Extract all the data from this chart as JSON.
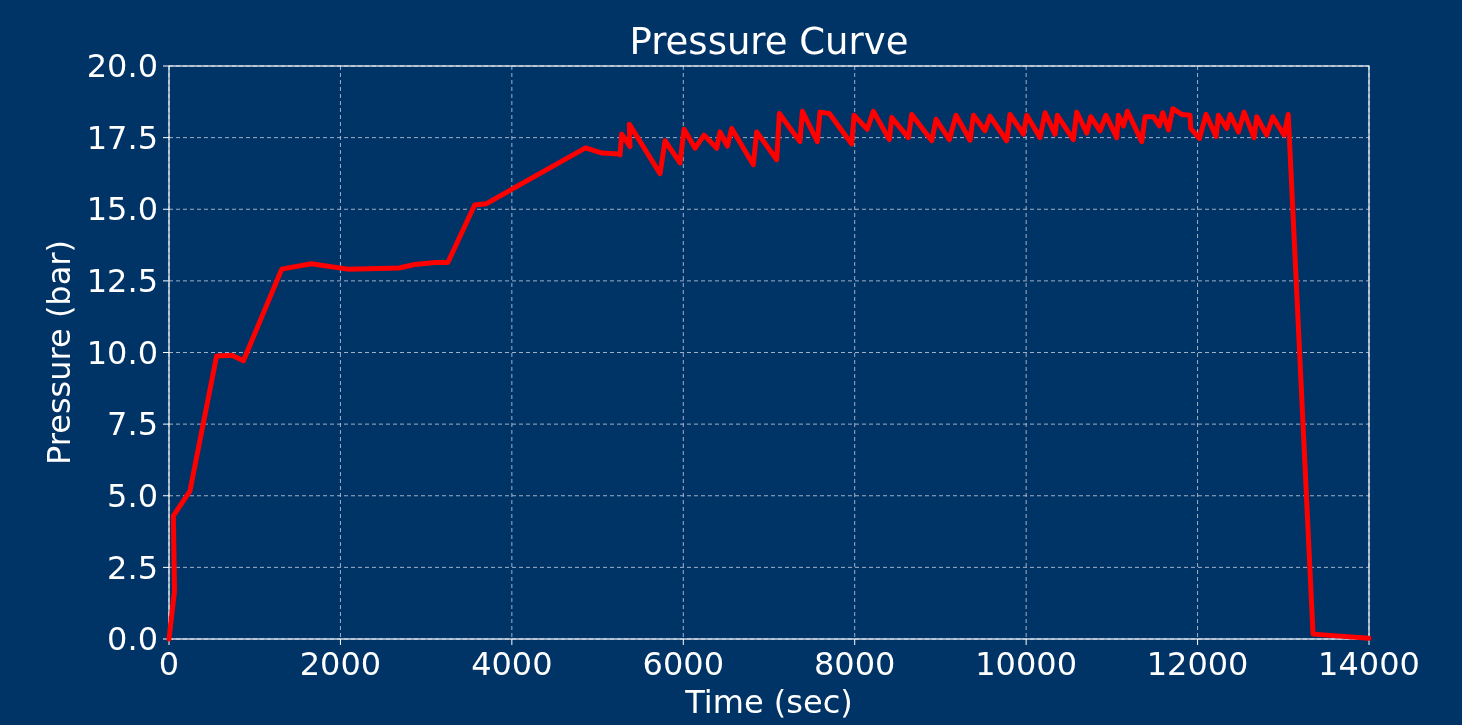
{
  "chart_data": {
    "type": "line",
    "title": "Pressure Curve",
    "xlabel": "Time (sec)",
    "ylabel": "Pressure (bar)",
    "xlim": [
      0,
      14000
    ],
    "xticks": [
      0,
      2000,
      4000,
      6000,
      8000,
      10000,
      12000,
      14000
    ],
    "ylim": [
      0,
      20
    ],
    "yticks": [
      {
        "value": 0,
        "label": "0.0"
      },
      {
        "value": 2.5,
        "label": "2.5"
      },
      {
        "value": 5,
        "label": "5.0"
      },
      {
        "value": 7.5,
        "label": "7.5"
      },
      {
        "value": 10,
        "label": "10.0"
      },
      {
        "value": 12.5,
        "label": "12.5"
      },
      {
        "value": 15,
        "label": "15.0"
      },
      {
        "value": 17.5,
        "label": "17.5"
      },
      {
        "value": 20,
        "label": "20.0"
      }
    ],
    "grid": true,
    "marker": "none",
    "line_style": "solid",
    "series": [
      {
        "color": "#ff0000",
        "x": [
          0,
          64,
          51,
          244,
          555,
          735,
          868,
          1315,
          1659,
          2083,
          2686,
          2865,
          3109,
          3253,
          3566,
          3699,
          4859,
          5052,
          5250,
          5262,
          5281,
          5379,
          5370,
          5729,
          5787,
          5962,
          6009,
          6137,
          6242,
          6390,
          6428,
          6514,
          6565,
          6817,
          6856,
          7090,
          7121,
          7360,
          7390,
          7564,
          7595,
          7704,
          7965,
          7992,
          8147,
          8217,
          8404,
          8432,
          8626,
          8665,
          8899,
          8949,
          9104,
          9182,
          9346,
          9385,
          9520,
          9578,
          9773,
          9812,
          9968,
          10007,
          10162,
          10221,
          10337,
          10364,
          10551,
          10590,
          10707,
          10754,
          10862,
          10932,
          11057,
          11076,
          11135,
          11181,
          11349,
          11388,
          11485,
          11555,
          11594,
          11660,
          11711,
          11815,
          11912,
          11920,
          12021,
          12099,
          12216,
          12243,
          12341,
          12380,
          12477,
          12542,
          12659,
          12690,
          12807,
          12877,
          13008,
          13058,
          13347,
          14000
        ],
        "values": [
          0,
          1.67,
          4.3,
          5.16,
          9.88,
          9.9,
          9.71,
          12.91,
          13.1,
          12.91,
          12.95,
          13.07,
          13.14,
          13.14,
          15.15,
          15.19,
          17.14,
          16.96,
          16.93,
          16.9,
          17.62,
          17.19,
          17.97,
          16.24,
          17.39,
          16.62,
          17.79,
          17.13,
          17.59,
          17.13,
          17.7,
          17.2,
          17.82,
          16.55,
          17.7,
          16.73,
          18.34,
          17.36,
          18.42,
          17.36,
          18.39,
          18.34,
          17.28,
          18.28,
          17.79,
          18.42,
          17.43,
          18.2,
          17.5,
          18.31,
          17.39,
          18.14,
          17.43,
          18.28,
          17.41,
          18.28,
          17.74,
          18.25,
          17.39,
          18.31,
          17.62,
          18.28,
          17.5,
          18.37,
          17.62,
          18.28,
          17.43,
          18.39,
          17.66,
          18.23,
          17.74,
          18.28,
          17.5,
          18.28,
          17.91,
          18.42,
          17.36,
          18.23,
          18.23,
          17.91,
          18.37,
          17.77,
          18.51,
          18.31,
          18.28,
          17.82,
          17.47,
          18.31,
          17.54,
          18.28,
          17.82,
          18.31,
          17.7,
          18.39,
          17.5,
          18.23,
          17.59,
          18.23,
          17.59,
          18.31,
          0.17,
          0.03
        ]
      }
    ]
  }
}
